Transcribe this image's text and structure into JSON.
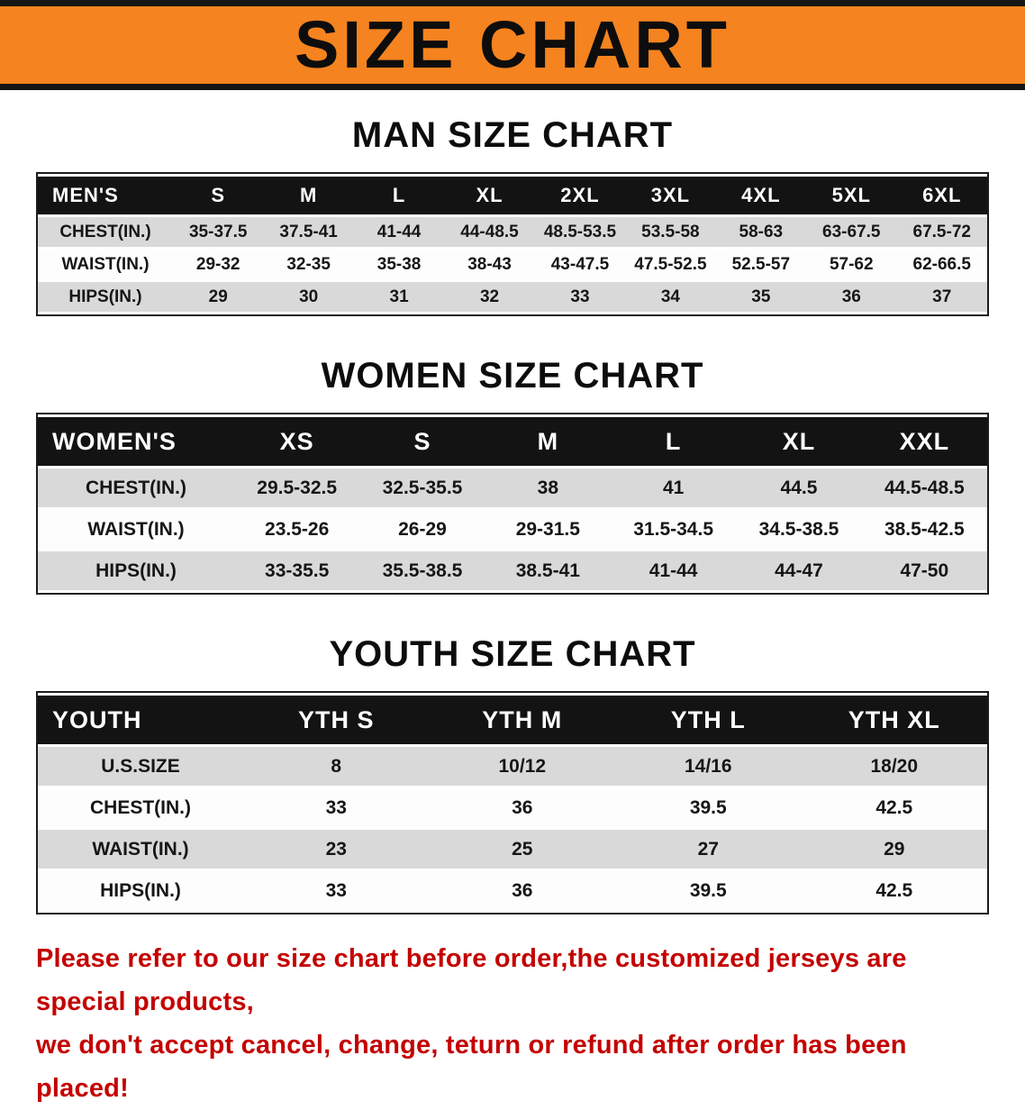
{
  "banner": {
    "title": "SIZE CHART"
  },
  "colors": {
    "banner_orange": "#f5831f",
    "header_black": "#131313",
    "stripe_gray": "#d9d9d9",
    "notice_red": "#c40000"
  },
  "sections": [
    {
      "heading": "MAN SIZE CHART",
      "table": {
        "header": [
          "MEN'S",
          "S",
          "M",
          "L",
          "XL",
          "2XL",
          "3XL",
          "4XL",
          "5XL",
          "6XL"
        ],
        "rows": [
          [
            "CHEST(IN.)",
            "35-37.5",
            "37.5-41",
            "41-44",
            "44-48.5",
            "48.5-53.5",
            "53.5-58",
            "58-63",
            "63-67.5",
            "67.5-72"
          ],
          [
            "WAIST(IN.)",
            "29-32",
            "32-35",
            "35-38",
            "38-43",
            "43-47.5",
            "47.5-52.5",
            "52.5-57",
            "57-62",
            "62-66.5"
          ],
          [
            "HIPS(IN.)",
            "29",
            "30",
            "31",
            "32",
            "33",
            "34",
            "35",
            "36",
            "37"
          ]
        ]
      }
    },
    {
      "heading": "WOMEN SIZE CHART",
      "table": {
        "header": [
          "WOMEN'S",
          "XS",
          "S",
          "M",
          "L",
          "XL",
          "XXL"
        ],
        "rows": [
          [
            "CHEST(IN.)",
            "29.5-32.5",
            "32.5-35.5",
            "38",
            "41",
            "44.5",
            "44.5-48.5"
          ],
          [
            "WAIST(IN.)",
            "23.5-26",
            "26-29",
            "29-31.5",
            "31.5-34.5",
            "34.5-38.5",
            "38.5-42.5"
          ],
          [
            "HIPS(IN.)",
            "33-35.5",
            "35.5-38.5",
            "38.5-41",
            "41-44",
            "44-47",
            "47-50"
          ]
        ]
      }
    },
    {
      "heading": "YOUTH SIZE CHART",
      "table": {
        "header": [
          "YOUTH",
          "YTH S",
          "YTH M",
          "YTH L",
          "YTH XL"
        ],
        "rows": [
          [
            "U.S.SIZE",
            "8",
            "10/12",
            "14/16",
            "18/20"
          ],
          [
            "CHEST(IN.)",
            "33",
            "36",
            "39.5",
            "42.5"
          ],
          [
            "WAIST(IN.)",
            "23",
            "25",
            "27",
            "29"
          ],
          [
            "HIPS(IN.)",
            "33",
            "36",
            "39.5",
            "42.5"
          ]
        ]
      }
    }
  ],
  "notice": {
    "line1": "Please refer to our size chart before order,the customized jerseys are special products,",
    "line2": "we don't accept cancel, change, teturn or refund after order has been placed!"
  }
}
